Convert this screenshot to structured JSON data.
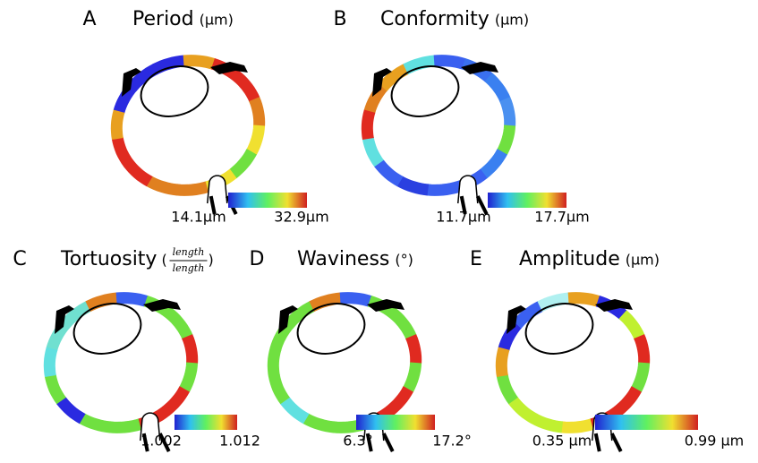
{
  "panels": [
    {
      "letter": "A",
      "title": "Period",
      "unit": "(µm)",
      "min_label": "14.1µm",
      "max_label": "32.9µm",
      "segments": [
        "#2a2ae0",
        "#2a2ae0",
        "#2a2ae0",
        "#e8a020",
        "#e02a20",
        "#e02a20",
        "#e08020",
        "#f0e030",
        "#70e040",
        "#f0e030",
        "#e08020",
        "#e08020",
        "#e02a20",
        "#e02a20",
        "#e8a020"
      ]
    },
    {
      "letter": "B",
      "title": "Conformity",
      "unit": "(µm)",
      "min_label": "11.7µm",
      "max_label": "17.7µm",
      "segments": [
        "#e08020",
        "#e8a020",
        "#60e0e0",
        "#3a60f0",
        "#3a70f0",
        "#3a80f0",
        "#4a90f0",
        "#70e040",
        "#3a80f0",
        "#3a60f0",
        "#3a60f0",
        "#2a40e0",
        "#3a60f0",
        "#60e0e0",
        "#e02a20"
      ]
    },
    {
      "letter": "C",
      "title": "Tortuosity",
      "unit_open": "(",
      "unit_num": "length",
      "unit_den": "length",
      "unit_close": ")",
      "min_label": "1.002",
      "max_label": "1.012",
      "segments": [
        "#70e0d0",
        "#70e0d0",
        "#e08020",
        "#3a60f0",
        "#70e040",
        "#70e040",
        "#e02a20",
        "#70e040",
        "#e02a20",
        "#e02a20",
        "#70e040",
        "#70e040",
        "#2a2ae0",
        "#70e040",
        "#60e0e0"
      ]
    },
    {
      "letter": "D",
      "title": "Waviness",
      "unit": "(°)",
      "min_label": "6.3°",
      "max_label": "17.2°",
      "segments": [
        "#70e040",
        "#70e040",
        "#e08020",
        "#3a60f0",
        "#70e040",
        "#70e040",
        "#e02a20",
        "#70e040",
        "#e02a20",
        "#e02a20",
        "#70e040",
        "#70e040",
        "#60e0e0",
        "#70e040",
        "#70e040"
      ]
    },
    {
      "letter": "E",
      "title": "Amplitude",
      "unit": "(µm)",
      "min_label": "0.35 µm",
      "max_label": "0.99 µm",
      "segments": [
        "#2a2ae0",
        "#3a60f0",
        "#b0f0f0",
        "#e8a020",
        "#2a2ae0",
        "#c0f030",
        "#e02a20",
        "#70e040",
        "#e02a20",
        "#e02a20",
        "#f0e030",
        "#c0f030",
        "#c0f030",
        "#70e040",
        "#e8a020"
      ]
    }
  ]
}
